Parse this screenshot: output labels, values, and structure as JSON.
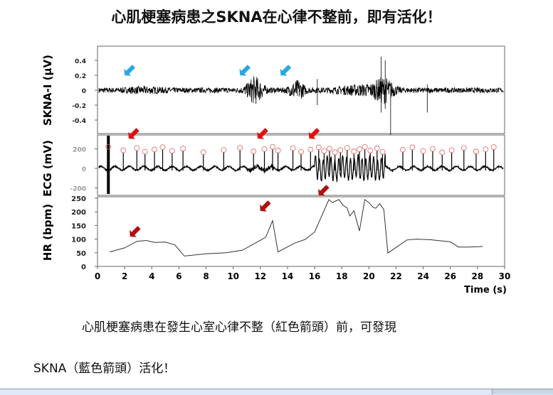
{
  "title": "心肌梗塞病患之SKNA在心律不整前，即有活化！",
  "caption_line1": "心肌梗塞病患在發生心室心律不整（紅色箭頭）前，可發現",
  "caption_line2": "SKNA（藍色箭頭）活化！",
  "colors": {
    "blue_arrow": "#29a8e0",
    "red_arrow": "#e01010",
    "dark_red_arrow": "#b01010",
    "peak_circle": "#e06060",
    "trace": "#000000"
  },
  "chart_data": [
    {
      "type": "line",
      "ylabel": "SKNA-I (μV)",
      "yticks": [
        "0.4",
        "0.2",
        "0",
        "-0.2",
        "-0.4"
      ],
      "ylim": [
        -0.55,
        0.55
      ],
      "note_arrows_blue_at_s": [
        2,
        10.5,
        13.5
      ]
    },
    {
      "type": "line",
      "ylabel": "ECG (mV)",
      "yticks": [
        "200",
        "0",
        "-200"
      ],
      "ylim": [
        -230,
        260
      ],
      "note_arrows_red_at_s": [
        2.3,
        11.8,
        15.6
      ]
    },
    {
      "type": "line",
      "ylabel": "HR (bpm)",
      "xlabel": "Time (s)",
      "xlim": [
        0,
        30
      ],
      "ylim": [
        0,
        250
      ],
      "xticks": [
        "0",
        "2",
        "4",
        "6",
        "8",
        "10",
        "12",
        "14",
        "16",
        "18",
        "20",
        "22",
        "24",
        "26",
        "28",
        "30"
      ],
      "yticks": [
        "0",
        "50",
        "100",
        "150",
        "200",
        "250"
      ],
      "x": [
        0.9,
        2.0,
        2.9,
        3.6,
        4.2,
        5.0,
        5.7,
        6.4,
        8.0,
        9.5,
        10.7,
        11.6,
        12.4,
        12.9,
        13.3,
        14.5,
        15.3,
        16.0,
        17.05,
        17.3,
        17.8,
        18.1,
        18.4,
        18.6,
        18.9,
        19.3,
        19.7,
        20.0,
        20.3,
        20.5,
        20.8,
        21.1,
        21.4,
        22.8,
        23.5,
        24.5,
        26.0,
        26.6,
        27.3,
        28.4
      ],
      "y": [
        53,
        68,
        92,
        95,
        88,
        89,
        79,
        38,
        46,
        50,
        60,
        85,
        107,
        168,
        53,
        85,
        99,
        126,
        245,
        234,
        245,
        224,
        214,
        185,
        204,
        130,
        245,
        234,
        217,
        213,
        230,
        208,
        49,
        97,
        100,
        98,
        90,
        71,
        71,
        73
      ],
      "note_arrows_dark_red_at_s": [
        2.4,
        12.0,
        16.3
      ]
    }
  ]
}
